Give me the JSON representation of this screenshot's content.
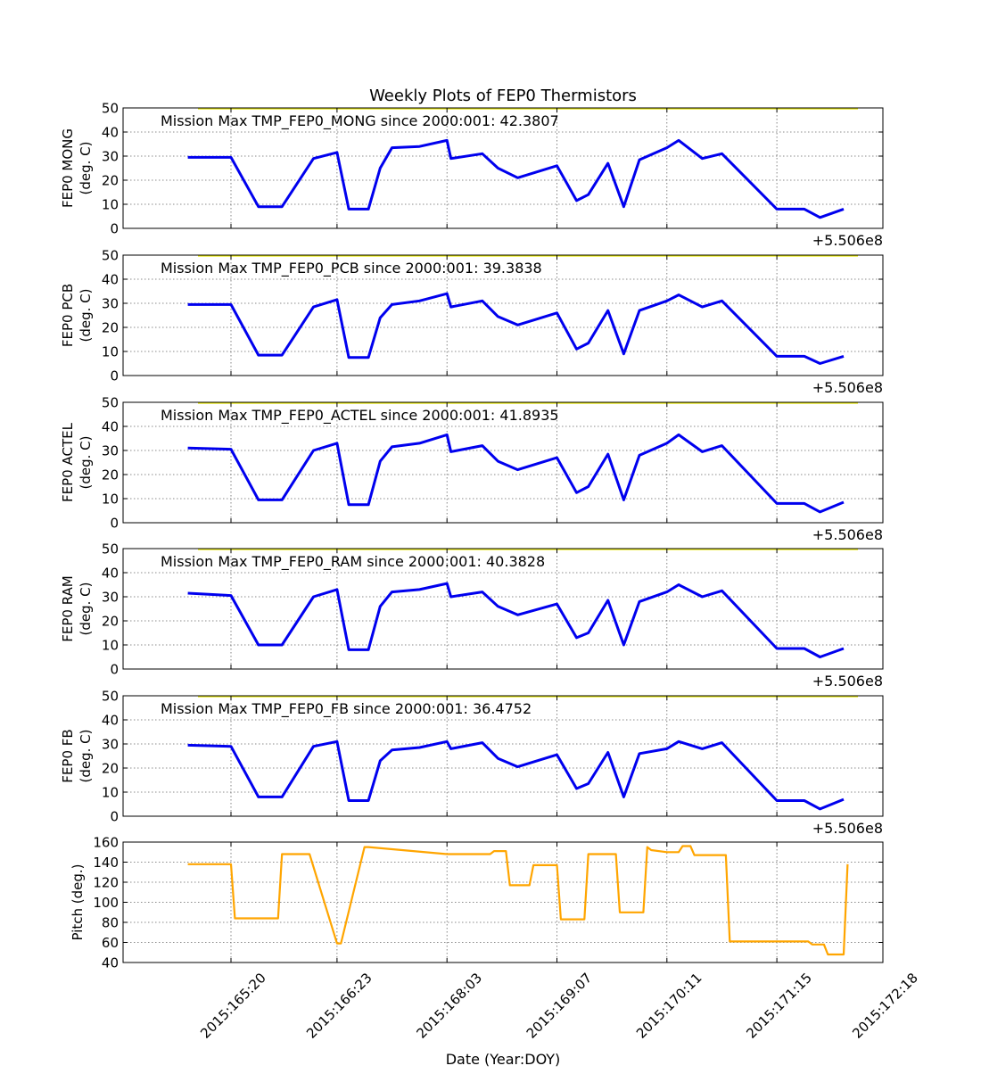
{
  "title": "Weekly Plots of FEP0 Thermistors",
  "xlabel": "Date (Year:DOY)",
  "offset_text": "+5.506e8",
  "x_ticks": [
    "2015:165:20",
    "2015:166:23",
    "2015:168:03",
    "2015:169:07",
    "2015:170:11",
    "2015:171:15",
    "2015:172:18"
  ],
  "colors": {
    "temp": "#0000ee",
    "pitch": "#ffa500",
    "limit": "#e8e800",
    "grid": "#666666"
  },
  "chart_data": [
    {
      "type": "line",
      "ylabel": [
        "FEP0 MONG",
        "(deg. C)"
      ],
      "annotation": "Mission Max TMP_FEP0_MONG since 2000:001: 42.3807",
      "ylim": [
        0,
        50
      ],
      "yticks": [
        0,
        10,
        20,
        30,
        40,
        50
      ],
      "limit_line": 50,
      "x": [
        "2015:165:09",
        "2015:165:20",
        "2015:166:03",
        "2015:166:09",
        "2015:166:17",
        "2015:166:23",
        "2015:167:02",
        "2015:167:07",
        "2015:167:10",
        "2015:167:13",
        "2015:167:20",
        "2015:168:03",
        "2015:168:04",
        "2015:168:12",
        "2015:168:16",
        "2015:168:21",
        "2015:169:07",
        "2015:169:12",
        "2015:169:15",
        "2015:169:20",
        "2015:170:00",
        "2015:170:04",
        "2015:170:11",
        "2015:170:14",
        "2015:170:20",
        "2015:171:01",
        "2015:171:15",
        "2015:171:22",
        "2015:172:02",
        "2015:172:08"
      ],
      "y": [
        29.5,
        29.5,
        9,
        9,
        29,
        31.5,
        8,
        8,
        25,
        33.5,
        34,
        36.5,
        29,
        31,
        25,
        21,
        26,
        11.5,
        14,
        27,
        9,
        28.5,
        33.5,
        36.5,
        29,
        31,
        8,
        8,
        4.5,
        8
      ]
    },
    {
      "type": "line",
      "ylabel": [
        "FEP0 PCB",
        "(deg. C)"
      ],
      "annotation": "Mission Max TMP_FEP0_PCB since 2000:001: 39.3838",
      "ylim": [
        0,
        50
      ],
      "yticks": [
        0,
        10,
        20,
        30,
        40,
        50
      ],
      "limit_line": 50,
      "x": [
        "2015:165:09",
        "2015:165:20",
        "2015:166:03",
        "2015:166:09",
        "2015:166:17",
        "2015:166:23",
        "2015:167:02",
        "2015:167:07",
        "2015:167:10",
        "2015:167:13",
        "2015:167:20",
        "2015:168:03",
        "2015:168:04",
        "2015:168:12",
        "2015:168:16",
        "2015:168:21",
        "2015:169:07",
        "2015:169:12",
        "2015:169:15",
        "2015:169:20",
        "2015:170:00",
        "2015:170:04",
        "2015:170:11",
        "2015:170:14",
        "2015:170:20",
        "2015:171:01",
        "2015:171:15",
        "2015:171:22",
        "2015:172:02",
        "2015:172:08"
      ],
      "y": [
        29.5,
        29.5,
        8.5,
        8.5,
        28.5,
        31.5,
        7.5,
        7.5,
        24,
        29.5,
        31,
        34,
        28.5,
        31,
        24.5,
        21,
        26,
        11,
        13.5,
        27,
        9,
        27,
        31,
        33.5,
        28.5,
        31,
        8,
        8,
        5,
        8
      ]
    },
    {
      "type": "line",
      "ylabel": [
        "FEP0 ACTEL",
        "(deg. C)"
      ],
      "annotation": "Mission Max TMP_FEP0_ACTEL since 2000:001: 41.8935",
      "ylim": [
        0,
        50
      ],
      "yticks": [
        0,
        10,
        20,
        30,
        40,
        50
      ],
      "limit_line": 50,
      "x": [
        "2015:165:09",
        "2015:165:20",
        "2015:166:03",
        "2015:166:09",
        "2015:166:17",
        "2015:166:23",
        "2015:167:02",
        "2015:167:07",
        "2015:167:10",
        "2015:167:13",
        "2015:167:20",
        "2015:168:03",
        "2015:168:04",
        "2015:168:12",
        "2015:168:16",
        "2015:168:21",
        "2015:169:07",
        "2015:169:12",
        "2015:169:15",
        "2015:169:20",
        "2015:170:00",
        "2015:170:04",
        "2015:170:11",
        "2015:170:14",
        "2015:170:20",
        "2015:171:01",
        "2015:171:15",
        "2015:171:22",
        "2015:172:02",
        "2015:172:08"
      ],
      "y": [
        31,
        30.5,
        9.5,
        9.5,
        30,
        33,
        7.5,
        7.5,
        25.5,
        31.5,
        33,
        36.5,
        29.5,
        32,
        25.5,
        22,
        27,
        12.5,
        15,
        28.5,
        9.5,
        28,
        33,
        36.5,
        29.5,
        32,
        8,
        8,
        4.5,
        8.5
      ]
    },
    {
      "type": "line",
      "ylabel": [
        "FEP0 RAM",
        "(deg. C)"
      ],
      "annotation": "Mission Max TMP_FEP0_RAM since 2000:001: 40.3828",
      "ylim": [
        0,
        50
      ],
      "yticks": [
        0,
        10,
        20,
        30,
        40,
        50
      ],
      "limit_line": 50,
      "x": [
        "2015:165:09",
        "2015:165:20",
        "2015:166:03",
        "2015:166:09",
        "2015:166:17",
        "2015:166:23",
        "2015:167:02",
        "2015:167:07",
        "2015:167:10",
        "2015:167:13",
        "2015:167:20",
        "2015:168:03",
        "2015:168:04",
        "2015:168:12",
        "2015:168:16",
        "2015:168:21",
        "2015:169:07",
        "2015:169:12",
        "2015:169:15",
        "2015:169:20",
        "2015:170:00",
        "2015:170:04",
        "2015:170:11",
        "2015:170:14",
        "2015:170:20",
        "2015:171:01",
        "2015:171:15",
        "2015:171:22",
        "2015:172:02",
        "2015:172:08"
      ],
      "y": [
        31.5,
        30.5,
        10,
        10,
        30,
        33,
        8,
        8,
        26,
        32,
        33,
        35.5,
        30,
        32,
        26,
        22.5,
        27,
        13,
        15,
        28.5,
        10,
        28,
        32,
        35,
        30,
        32.5,
        8.5,
        8.5,
        5,
        8.5
      ]
    },
    {
      "type": "line",
      "ylabel": [
        "FEP0 FB",
        "(deg. C)"
      ],
      "annotation": "Mission Max TMP_FEP0_FB since 2000:001: 36.4752",
      "ylim": [
        0,
        50
      ],
      "yticks": [
        0,
        10,
        20,
        30,
        40,
        50
      ],
      "limit_line": 50,
      "x": [
        "2015:165:09",
        "2015:165:20",
        "2015:166:03",
        "2015:166:09",
        "2015:166:17",
        "2015:166:23",
        "2015:167:02",
        "2015:167:07",
        "2015:167:10",
        "2015:167:13",
        "2015:167:20",
        "2015:168:03",
        "2015:168:04",
        "2015:168:12",
        "2015:168:16",
        "2015:168:21",
        "2015:169:07",
        "2015:169:12",
        "2015:169:15",
        "2015:169:20",
        "2015:170:00",
        "2015:170:04",
        "2015:170:11",
        "2015:170:14",
        "2015:170:20",
        "2015:171:01",
        "2015:171:15",
        "2015:171:22",
        "2015:172:02",
        "2015:172:08"
      ],
      "y": [
        29.5,
        29,
        8,
        8,
        29,
        31,
        6.5,
        6.5,
        23,
        27.5,
        28.5,
        31,
        28,
        30.5,
        24,
        20.5,
        25.5,
        11.5,
        13.5,
        26.5,
        8,
        26,
        28,
        31,
        28,
        30.5,
        6.5,
        6.5,
        3,
        7
      ]
    },
    {
      "type": "line",
      "ylabel": [
        "Pitch (deg.)"
      ],
      "ylim": [
        40,
        160
      ],
      "yticks": [
        40,
        60,
        80,
        100,
        120,
        140,
        160
      ],
      "x": [
        "2015:165:09",
        "2015:165:20",
        "2015:165:21",
        "2015:166:08",
        "2015:166:09",
        "2015:166:16",
        "2015:166:23",
        "2015:167:00",
        "2015:167:06",
        "2015:167:07",
        "2015:168:03",
        "2015:168:04",
        "2015:168:14",
        "2015:168:15",
        "2015:168:18",
        "2015:168:19",
        "2015:169:00",
        "2015:169:01",
        "2015:169:07",
        "2015:169:08",
        "2015:169:14",
        "2015:169:15",
        "2015:169:22",
        "2015:169:23",
        "2015:170:05",
        "2015:170:06",
        "2015:170:07",
        "2015:170:11",
        "2015:170:14",
        "2015:170:15",
        "2015:170:17",
        "2015:170:18",
        "2015:171:02",
        "2015:171:03",
        "2015:171:23",
        "2015:172:00",
        "2015:172:03",
        "2015:172:04",
        "2015:172:08",
        "2015:172:09"
      ],
      "y": [
        138,
        138,
        84,
        84,
        148,
        148,
        59,
        59,
        155,
        155,
        148,
        148,
        148,
        151,
        151,
        117,
        117,
        137,
        137,
        83,
        83,
        148,
        148,
        90,
        90,
        155,
        152,
        150,
        150,
        156,
        156,
        147,
        147,
        61,
        61,
        58,
        58,
        48,
        48,
        138
      ]
    }
  ]
}
